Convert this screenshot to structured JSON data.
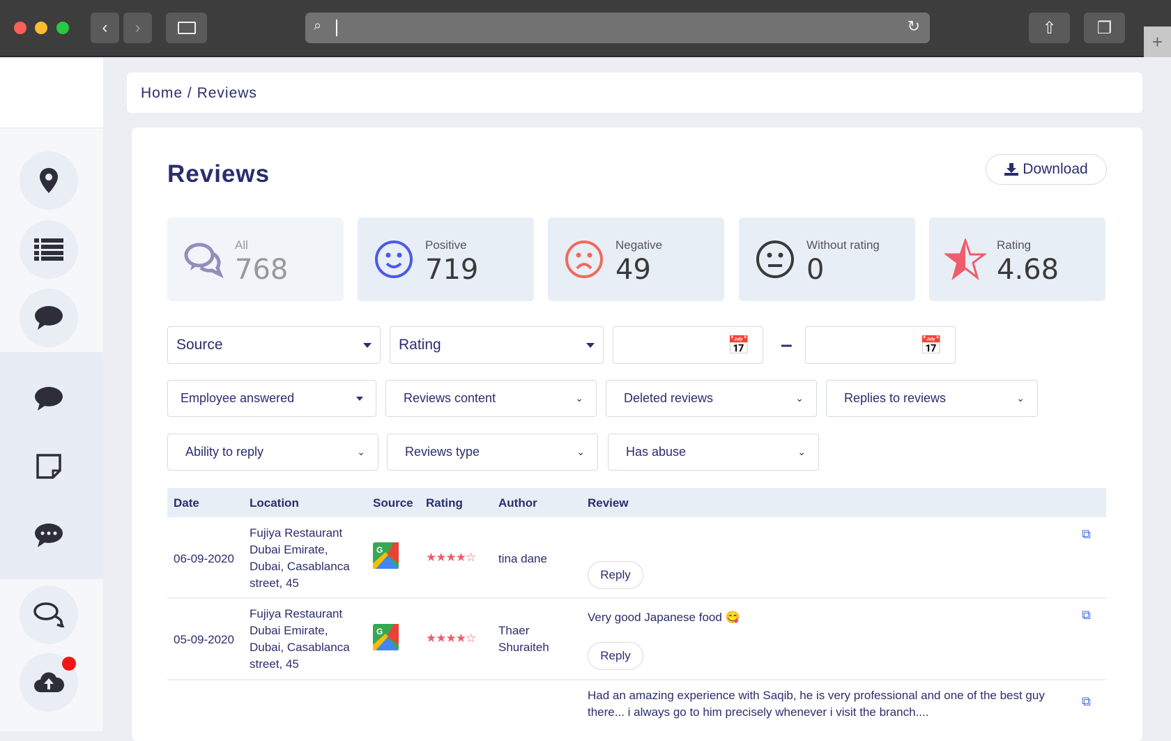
{
  "browser": {
    "url": ""
  },
  "breadcrumb": {
    "home": "Home",
    "sep": "/",
    "current": "Reviews"
  },
  "page": {
    "title": "Reviews",
    "download_label": "Download"
  },
  "stats": [
    {
      "label": "All",
      "value": "768",
      "icon": "chat-bubbles-icon",
      "color": "#8f8fb8"
    },
    {
      "label": "Positive",
      "value": "719",
      "icon": "smile-icon",
      "color": "#4a5ae8"
    },
    {
      "label": "Negative",
      "value": "49",
      "icon": "frown-icon",
      "color": "#ef6b5e"
    },
    {
      "label": "Without rating",
      "value": "0",
      "icon": "neutral-face-icon",
      "color": "#3a3a3a"
    },
    {
      "label": "Rating",
      "value": "4.68",
      "icon": "half-star-icon",
      "color": "#ee5d6c"
    }
  ],
  "filters": {
    "source": "Source",
    "rating": "Rating",
    "date_from": "",
    "date_to": "",
    "date_sep": "–",
    "employee_answered": "Employee answered",
    "reviews_content": "Reviews content",
    "deleted_reviews": "Deleted reviews",
    "replies_to_reviews": "Replies to reviews",
    "ability_to_reply": "Ability to reply",
    "reviews_type": "Reviews type",
    "has_abuse": "Has abuse"
  },
  "table": {
    "headers": [
      "Date",
      "Location",
      "Source",
      "Rating",
      "Author",
      "Review"
    ],
    "rows": [
      {
        "date": "06-09-2020",
        "location": [
          "Fujiya Restaurant",
          "Dubai Emirate,",
          "Dubai, Casablanca",
          "street, 45"
        ],
        "source": "google-maps-icon",
        "rating": 4,
        "author": "tina dane",
        "review": "",
        "reply": "Reply"
      },
      {
        "date": "05-09-2020",
        "location": [
          "Fujiya Restaurant",
          "Dubai Emirate,",
          "Dubai, Casablanca",
          "street, 45"
        ],
        "source": "google-maps-icon",
        "rating": 4,
        "author": "Thaer Shuraiteh",
        "review": "Very good Japanese food 😋",
        "reply": "Reply"
      },
      {
        "date": "",
        "location": [],
        "source": "",
        "rating": null,
        "author": "",
        "review": "Had an amazing experience with Saqib, he is very professional and one of the best guy there... i always go to him precisely whenever i visit the branch....",
        "reply": ""
      }
    ]
  }
}
